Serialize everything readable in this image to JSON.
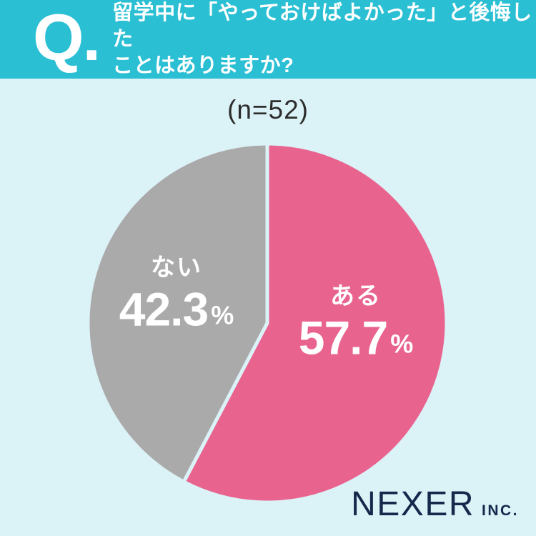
{
  "colors": {
    "background": "#DBF2F7",
    "header_bg": "#2BBFD4",
    "header_text": "#FFFFFF",
    "sample_text": "#2D2D2D",
    "brand_color": "#14294B",
    "slice_gap": "#DBF2F7"
  },
  "header": {
    "q_label": "Q.",
    "title_line1": "留学中に「やっておけばよかった」と後悔した",
    "title_line2": "ことはありますか?"
  },
  "sample_size": "(n=52)",
  "chart_data": {
    "type": "pie",
    "title": "留学中に「やっておけばよかった」と後悔したことはありますか?",
    "sample_n": 52,
    "sample_label": "(n=52)",
    "start_angle_deg": 0,
    "direction": "clockwise",
    "gap_color": "#DBF2F7",
    "slices": [
      {
        "key": "aru",
        "label": "ある",
        "value": 57.7,
        "unit": "%",
        "color": "#E9638F",
        "text_color": "#FFFFFF"
      },
      {
        "key": "nai",
        "label": "ない",
        "value": 42.3,
        "unit": "%",
        "color": "#ABAAAB",
        "text_color": "#FFFFFF"
      }
    ]
  },
  "footer": {
    "brand": "NEXER",
    "brand_suffix": "INC."
  }
}
